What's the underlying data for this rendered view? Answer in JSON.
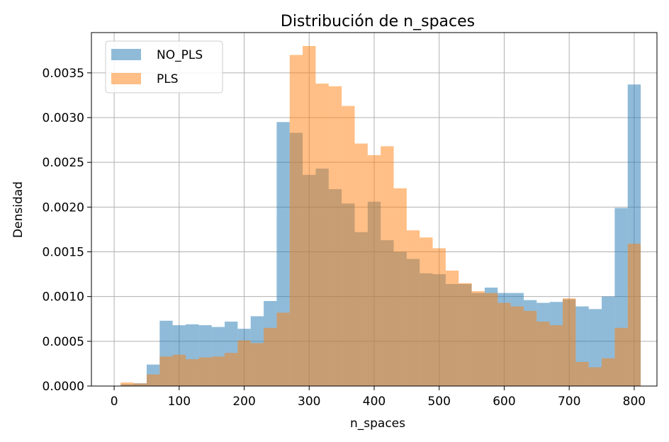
{
  "chart_data": {
    "type": "bar",
    "title": "Distribución de n_spaces",
    "xlabel": "n_spaces",
    "ylabel": "Densidad",
    "xlim": [
      -35,
      835
    ],
    "ylim": [
      0,
      0.00395
    ],
    "xticks": [
      0,
      100,
      200,
      300,
      400,
      500,
      600,
      700,
      800
    ],
    "yticks": [
      0,
      0.0005,
      0.001,
      0.0015,
      0.002,
      0.0025,
      0.003,
      0.0035
    ],
    "xtick_labels": [
      "0",
      "100",
      "200",
      "300",
      "400",
      "500",
      "600",
      "700",
      "800"
    ],
    "ytick_labels": [
      "0.0000",
      "0.0005",
      "0.0010",
      "0.0015",
      "0.0020",
      "0.0025",
      "0.0030",
      "0.0035"
    ],
    "grid": true,
    "legend_position": "top-left",
    "bin_width": 20,
    "series": [
      {
        "name": "NO_PLS",
        "color": "#1f77b4",
        "bin_starts": [
          10,
          30,
          50,
          70,
          90,
          110,
          130,
          150,
          170,
          190,
          210,
          230,
          250,
          270,
          290,
          310,
          330,
          350,
          370,
          390,
          410,
          430,
          450,
          470,
          490,
          510,
          530,
          550,
          570,
          590,
          610,
          630,
          650,
          670,
          690,
          710,
          730,
          750,
          770,
          790
        ],
        "values": [
          2e-05,
          3e-05,
          0.00024,
          0.00073,
          0.00068,
          0.00069,
          0.00068,
          0.00066,
          0.00072,
          0.00064,
          0.00078,
          0.00095,
          0.00295,
          0.00283,
          0.00236,
          0.00243,
          0.0022,
          0.00204,
          0.00172,
          0.00206,
          0.00163,
          0.0015,
          0.00142,
          0.00126,
          0.00125,
          0.00114,
          0.00114,
          0.00104,
          0.0011,
          0.00104,
          0.00104,
          0.00096,
          0.00093,
          0.00094,
          0.00097,
          0.00089,
          0.00086,
          0.001,
          0.00199,
          0.00337
        ]
      },
      {
        "name": "PLS",
        "color": "#ff7f0e",
        "bin_starts": [
          10,
          30,
          50,
          70,
          90,
          110,
          130,
          150,
          170,
          190,
          210,
          230,
          250,
          270,
          290,
          310,
          330,
          350,
          370,
          390,
          410,
          430,
          450,
          470,
          490,
          510,
          530,
          550,
          570,
          590,
          610,
          630,
          650,
          670,
          690,
          710,
          730,
          750,
          770,
          790
        ],
        "values": [
          4e-05,
          3e-05,
          0.00013,
          0.00033,
          0.00035,
          0.0003,
          0.00032,
          0.00033,
          0.00037,
          0.00051,
          0.00048,
          0.00065,
          0.00082,
          0.0037,
          0.0038,
          0.00338,
          0.00335,
          0.00313,
          0.00271,
          0.00258,
          0.00268,
          0.00221,
          0.00174,
          0.00166,
          0.00154,
          0.00129,
          0.00115,
          0.00106,
          0.00104,
          0.00093,
          0.00089,
          0.00084,
          0.00072,
          0.00068,
          0.00098,
          0.00027,
          0.00021,
          0.00031,
          0.00065,
          0.00159
        ]
      }
    ]
  }
}
